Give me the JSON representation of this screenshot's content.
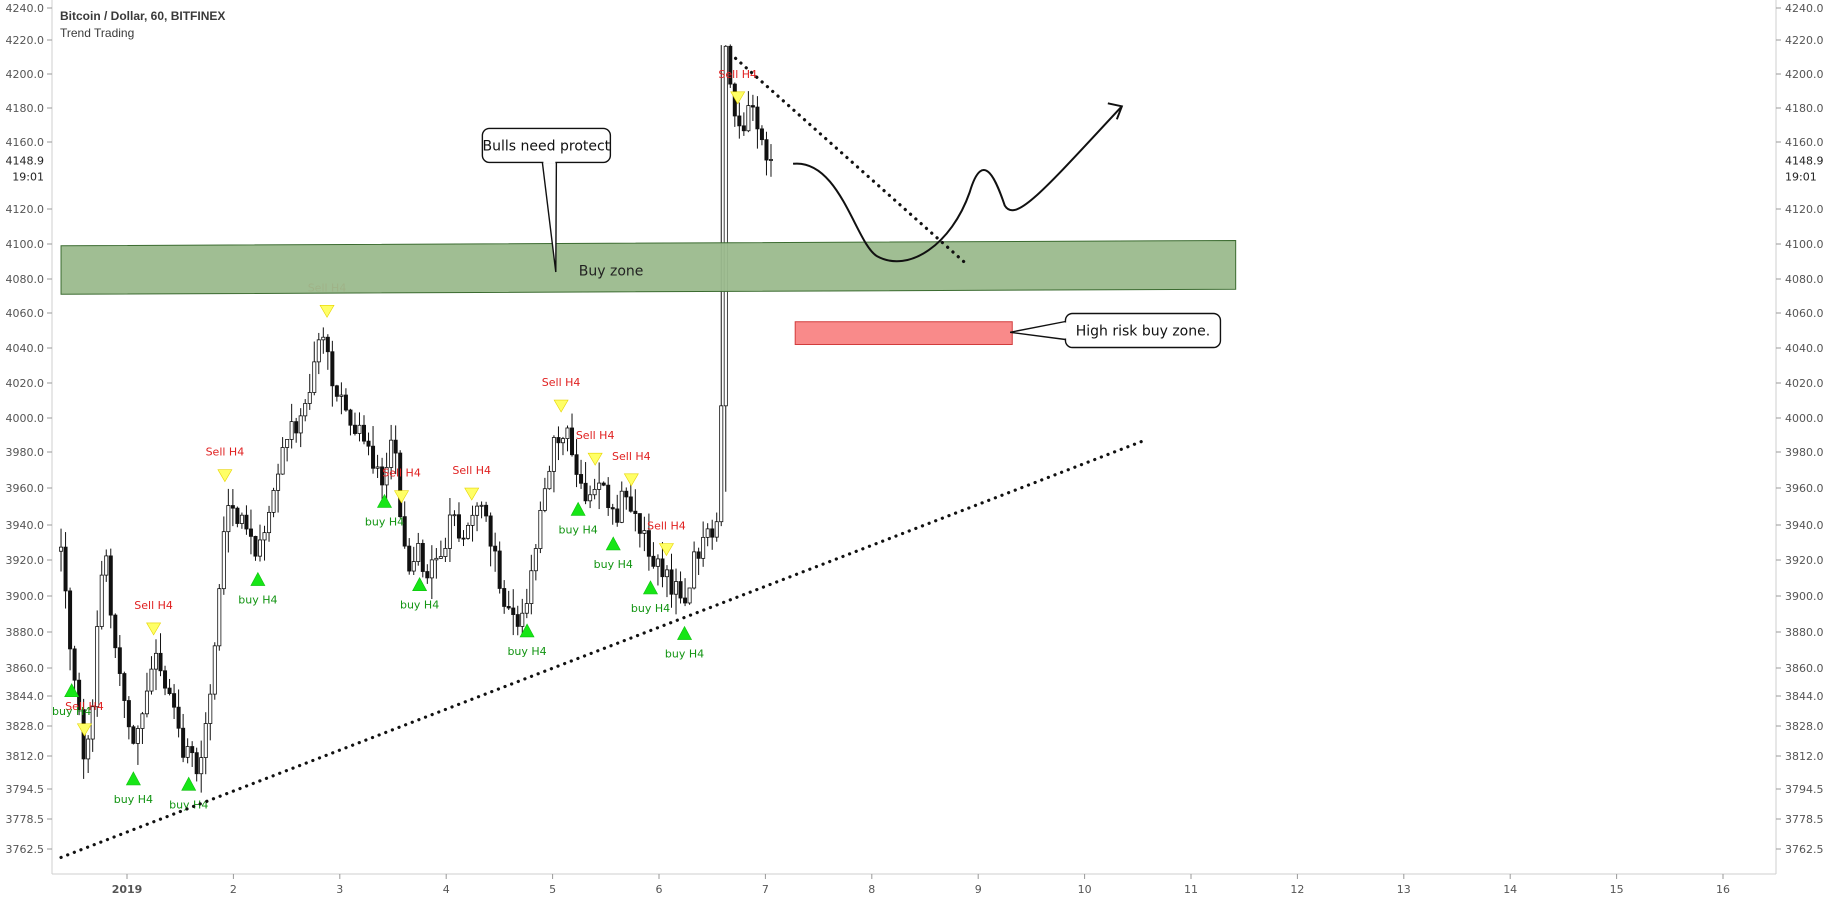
{
  "header": {
    "symbol_title": "Bitcoin / Dollar, 60, BITFINEX",
    "indicator_name": "Trend Trading"
  },
  "price_marker": {
    "price": "4148.9",
    "time": "19:01"
  },
  "chart_data": {
    "type": "candlestick",
    "title": "Bitcoin / Dollar, 60, BITFINEX",
    "subtitle": "Trend Trading",
    "y_ticks": [
      "4240.0",
      "4220.0",
      "4200.0",
      "4180.0",
      "4160.0",
      "4120.0",
      "4100.0",
      "4080.0",
      "4060.0",
      "4040.0",
      "4020.0",
      "4000.0",
      "3980.0",
      "3960.0",
      "3940.0",
      "3920.0",
      "3900.0",
      "3880.0",
      "3860.0",
      "3844.0",
      "3828.0",
      "3812.0",
      "3794.5",
      "3778.5",
      "3762.5"
    ],
    "x_ticks": [
      {
        "label": "2019",
        "x": 1,
        "bold": true
      },
      {
        "label": "2",
        "x": 2
      },
      {
        "label": "3",
        "x": 3
      },
      {
        "label": "4",
        "x": 4
      },
      {
        "label": "5",
        "x": 5
      },
      {
        "label": "6",
        "x": 6
      },
      {
        "label": "7",
        "x": 7
      },
      {
        "label": "8",
        "x": 8
      },
      {
        "label": "9",
        "x": 9
      },
      {
        "label": "10",
        "x": 10
      },
      {
        "label": "11",
        "x": 11
      },
      {
        "label": "12",
        "x": 12
      },
      {
        "label": "13",
        "x": 13
      },
      {
        "label": "14",
        "x": 14
      },
      {
        "label": "15",
        "x": 15
      },
      {
        "label": "16",
        "x": 16
      }
    ],
    "xlim": [
      0.38,
      16.95
    ],
    "ylim": [
      3755,
      4244
    ],
    "anchors": [
      [
        0.38,
        3925
      ],
      [
        0.45,
        3880
      ],
      [
        0.52,
        3845
      ],
      [
        0.6,
        3810
      ],
      [
        0.67,
        3830
      ],
      [
        0.73,
        3895
      ],
      [
        0.8,
        3920
      ],
      [
        0.87,
        3880
      ],
      [
        0.93,
        3860
      ],
      [
        1.0,
        3835
      ],
      [
        1.07,
        3815
      ],
      [
        1.13,
        3830
      ],
      [
        1.2,
        3855
      ],
      [
        1.27,
        3870
      ],
      [
        1.33,
        3855
      ],
      [
        1.4,
        3845
      ],
      [
        1.47,
        3825
      ],
      [
        1.53,
        3815
      ],
      [
        1.6,
        3815
      ],
      [
        1.67,
        3800
      ],
      [
        1.73,
        3830
      ],
      [
        1.8,
        3850
      ],
      [
        1.87,
        3905
      ],
      [
        1.93,
        3960
      ],
      [
        2.0,
        3945
      ],
      [
        2.07,
        3945
      ],
      [
        2.13,
        3935
      ],
      [
        2.2,
        3925
      ],
      [
        2.27,
        3930
      ],
      [
        2.33,
        3950
      ],
      [
        2.4,
        3960
      ],
      [
        2.47,
        3980
      ],
      [
        2.53,
        4000
      ],
      [
        2.6,
        3990
      ],
      [
        2.67,
        4005
      ],
      [
        2.73,
        4020
      ],
      [
        2.8,
        4040
      ],
      [
        2.87,
        4050
      ],
      [
        2.93,
        4020
      ],
      [
        3.0,
        4015
      ],
      [
        3.07,
        4000
      ],
      [
        3.13,
        3995
      ],
      [
        3.2,
        3990
      ],
      [
        3.27,
        3980
      ],
      [
        3.33,
        3975
      ],
      [
        3.4,
        3965
      ],
      [
        3.47,
        3985
      ],
      [
        3.53,
        3975
      ],
      [
        3.6,
        3925
      ],
      [
        3.67,
        3915
      ],
      [
        3.73,
        3930
      ],
      [
        3.8,
        3910
      ],
      [
        3.87,
        3920
      ],
      [
        3.93,
        3915
      ],
      [
        4.0,
        3930
      ],
      [
        4.07,
        3950
      ],
      [
        4.13,
        3930
      ],
      [
        4.2,
        3935
      ],
      [
        4.27,
        3945
      ],
      [
        4.33,
        3950
      ],
      [
        4.4,
        3935
      ],
      [
        4.47,
        3920
      ],
      [
        4.53,
        3900
      ],
      [
        4.6,
        3890
      ],
      [
        4.67,
        3885
      ],
      [
        4.73,
        3890
      ],
      [
        4.8,
        3910
      ],
      [
        4.87,
        3940
      ],
      [
        4.93,
        3960
      ],
      [
        5.0,
        3985
      ],
      [
        5.07,
        3990
      ],
      [
        5.13,
        3995
      ],
      [
        5.2,
        3975
      ],
      [
        5.27,
        3960
      ],
      [
        5.33,
        3955
      ],
      [
        5.4,
        3960
      ],
      [
        5.47,
        3965
      ],
      [
        5.53,
        3950
      ],
      [
        5.6,
        3945
      ],
      [
        5.67,
        3960
      ],
      [
        5.73,
        3950
      ],
      [
        5.8,
        3940
      ],
      [
        5.87,
        3935
      ],
      [
        5.93,
        3920
      ],
      [
        6.0,
        3915
      ],
      [
        6.07,
        3910
      ],
      [
        6.13,
        3905
      ],
      [
        6.2,
        3900
      ],
      [
        6.27,
        3895
      ],
      [
        6.33,
        3920
      ],
      [
        6.4,
        3925
      ],
      [
        6.47,
        3940
      ],
      [
        6.53,
        3935
      ],
      [
        6.58,
        3955
      ],
      [
        6.6,
        4180
      ],
      [
        6.63,
        4210
      ],
      [
        6.67,
        4190
      ],
      [
        6.72,
        4175
      ],
      [
        6.78,
        4160
      ],
      [
        6.85,
        4185
      ],
      [
        6.92,
        4165
      ],
      [
        7.0,
        4155
      ],
      [
        7.08,
        4149
      ]
    ],
    "arrows": [
      {
        "kind": "sell",
        "x": 0.6,
        "label": "Sell H4"
      },
      {
        "kind": "sell",
        "x": 1.25,
        "label": "Sell H4"
      },
      {
        "kind": "sell",
        "x": 1.92,
        "label": "Sell H4"
      },
      {
        "kind": "sell",
        "x": 2.88,
        "label": "Sell H4"
      },
      {
        "kind": "sell",
        "x": 3.58,
        "label": "Sell H4"
      },
      {
        "kind": "sell",
        "x": 4.24,
        "label": "Sell H4"
      },
      {
        "kind": "sell",
        "x": 5.08,
        "label": "Sell H4"
      },
      {
        "kind": "sell",
        "x": 5.4,
        "label": "Sell H4"
      },
      {
        "kind": "sell",
        "x": 5.74,
        "label": "Sell H4"
      },
      {
        "kind": "sell",
        "x": 6.07,
        "label": "Sell H4"
      },
      {
        "kind": "sell",
        "x": 6.74,
        "label": "Sell H4"
      },
      {
        "kind": "buy",
        "x": 0.48,
        "label": "buy H4"
      },
      {
        "kind": "buy",
        "x": 1.06,
        "label": "buy H4"
      },
      {
        "kind": "buy",
        "x": 1.58,
        "label": "buy H4"
      },
      {
        "kind": "buy",
        "x": 2.23,
        "label": "buy H4"
      },
      {
        "kind": "buy",
        "x": 3.42,
        "label": "buy H4"
      },
      {
        "kind": "buy",
        "x": 3.75,
        "label": "buy H4"
      },
      {
        "kind": "buy",
        "x": 4.76,
        "label": "buy H4"
      },
      {
        "kind": "buy",
        "x": 5.24,
        "label": "buy H4"
      },
      {
        "kind": "buy",
        "x": 5.57,
        "label": "buy H4"
      },
      {
        "kind": "buy",
        "x": 5.92,
        "label": "buy H4"
      },
      {
        "kind": "buy",
        "x": 6.24,
        "label": "buy H4"
      }
    ],
    "annotations": {
      "buy_zone": {
        "label": "Buy zone",
        "x_from": 0.38,
        "x_to": 11.42,
        "y_left_top": 4099,
        "y_left_bottom": 4071,
        "y_right_top": 4102,
        "y_right_bottom": 4074,
        "color": "#9bba8d"
      },
      "high_risk_zone": {
        "label": "High risk buy zone.",
        "x_from": 7.28,
        "x_to": 9.32,
        "y_top": 4055,
        "y_bottom": 4042,
        "color": "#f98a8a"
      },
      "callout_bulls": {
        "text": "Bulls need protect"
      },
      "support_trendline": {
        "from": [
          0.38,
          3758
        ],
        "to": [
          10.57,
          3987
        ]
      },
      "resistance_trendline": {
        "from": [
          6.67,
          4212
        ],
        "to": [
          8.9,
          4088
        ]
      }
    }
  }
}
